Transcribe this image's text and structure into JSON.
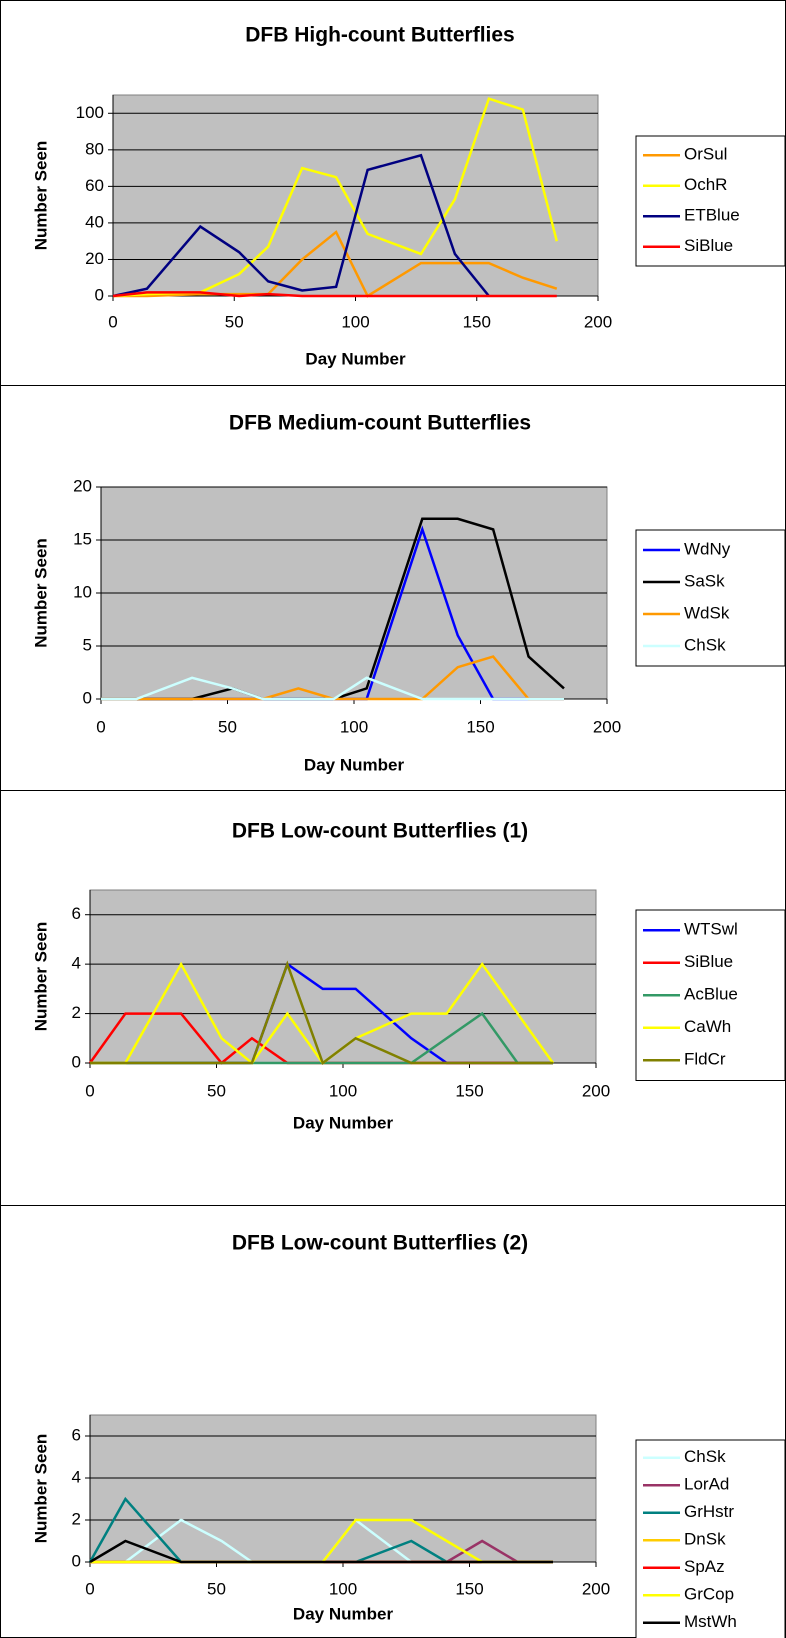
{
  "chart_data": [
    {
      "type": "line",
      "title": "DFB High-count Butterflies",
      "x_label": "Day Number",
      "y_label": "Number Seen",
      "x": [
        0,
        14,
        36,
        52,
        64,
        78,
        92,
        105,
        127,
        141,
        155,
        169,
        183
      ],
      "xlim": [
        0,
        200
      ],
      "xticks": [
        0,
        50,
        100,
        150,
        200
      ],
      "ylim": [
        0,
        110
      ],
      "yticks": [
        0,
        20,
        40,
        60,
        80,
        100
      ],
      "grid": true,
      "series": [
        {
          "name": "OrSul",
          "color": "#ff9900",
          "values": [
            0,
            0,
            1,
            1,
            1,
            20,
            35,
            0,
            18,
            18,
            18,
            10,
            4
          ]
        },
        {
          "name": "OchR",
          "color": "#ffff00",
          "values": [
            0,
            1,
            2,
            12,
            27,
            70,
            65,
            34,
            23,
            53,
            108,
            102,
            30
          ]
        },
        {
          "name": "ETBlue",
          "color": "#000080",
          "values": [
            0,
            4,
            38,
            24,
            8,
            3,
            5,
            69,
            77,
            23,
            0,
            null,
            null
          ]
        },
        {
          "name": "SiBlue",
          "color": "#ff0000",
          "values": [
            0,
            2,
            2,
            0,
            1,
            0,
            0,
            0,
            0,
            0,
            0,
            0,
            0
          ]
        }
      ]
    },
    {
      "type": "line",
      "title": "DFB Medium-count Butterflies",
      "x_label": "Day Number",
      "y_label": "Number Seen",
      "x": [
        0,
        14,
        36,
        52,
        64,
        78,
        92,
        105,
        127,
        141,
        155,
        169,
        183
      ],
      "xlim": [
        0,
        200
      ],
      "xticks": [
        0,
        50,
        100,
        150,
        200
      ],
      "ylim": [
        0,
        20
      ],
      "yticks": [
        0,
        5,
        10,
        15,
        20
      ],
      "grid": true,
      "series": [
        {
          "name": "WdNy",
          "color": "#0000ff",
          "values": [
            0,
            0,
            0,
            0,
            0,
            0,
            0,
            0,
            16,
            6,
            0,
            0,
            0
          ]
        },
        {
          "name": "SaSk",
          "color": "#000000",
          "values": [
            0,
            0,
            0,
            1,
            0,
            0,
            0,
            1,
            17,
            17,
            16,
            4,
            1
          ]
        },
        {
          "name": "WdSk",
          "color": "#ff9900",
          "values": [
            0,
            0,
            0,
            0,
            0,
            1,
            0,
            0,
            0,
            3,
            4,
            0,
            0
          ]
        },
        {
          "name": "ChSk",
          "color": "#ccffff",
          "values": [
            0,
            0,
            2,
            1,
            0,
            0,
            0,
            2,
            0,
            0,
            0,
            0,
            0
          ]
        }
      ]
    },
    {
      "type": "line",
      "title": "DFB Low-count Butterflies (1)",
      "x_label": "Day Number",
      "y_label": "Number Seen",
      "x": [
        0,
        14,
        36,
        52,
        64,
        78,
        92,
        105,
        127,
        141,
        155,
        169,
        183
      ],
      "xlim": [
        0,
        200
      ],
      "xticks": [
        0,
        50,
        100,
        150,
        200
      ],
      "ylim": [
        0,
        7
      ],
      "yticks": [
        0,
        2,
        4,
        6
      ],
      "grid": true,
      "series": [
        {
          "name": "WTSwl",
          "color": "#0000ff",
          "values": [
            0,
            0,
            0,
            0,
            0,
            4,
            3,
            3,
            1,
            0,
            0,
            0,
            0
          ]
        },
        {
          "name": "SiBlue",
          "color": "#ff0000",
          "values": [
            0,
            2,
            2,
            0,
            1,
            0,
            0,
            0,
            0,
            0,
            0,
            0,
            0
          ]
        },
        {
          "name": "AcBlue",
          "color": "#339966",
          "values": [
            0,
            0,
            0,
            0,
            0,
            0,
            0,
            0,
            0,
            1,
            2,
            0,
            0
          ]
        },
        {
          "name": "CaWh",
          "color": "#ffff00",
          "values": [
            0,
            0,
            4,
            1,
            0,
            2,
            0,
            1,
            2,
            2,
            4,
            2,
            0
          ]
        },
        {
          "name": "FldCr",
          "color": "#808000",
          "values": [
            0,
            0,
            0,
            0,
            0,
            4,
            0,
            1,
            0,
            0,
            0,
            0,
            0
          ]
        }
      ]
    },
    {
      "type": "line",
      "title": "DFB Low-count Butterflies (2)",
      "x_label": "Day Number",
      "y_label": "Number Seen",
      "x": [
        0,
        14,
        36,
        52,
        64,
        78,
        92,
        105,
        127,
        141,
        155,
        169,
        183
      ],
      "xlim": [
        0,
        200
      ],
      "xticks": [
        0,
        50,
        100,
        150,
        200
      ],
      "ylim": [
        0,
        7
      ],
      "yticks": [
        0,
        2,
        4,
        6
      ],
      "grid": true,
      "series": [
        {
          "name": "ChSk",
          "color": "#ccffff",
          "values": [
            0,
            0,
            2,
            1,
            0,
            0,
            0,
            2,
            0,
            0,
            0,
            0,
            0
          ]
        },
        {
          "name": "LorAd",
          "color": "#993366",
          "values": [
            0,
            0,
            0,
            0,
            0,
            0,
            0,
            0,
            0,
            0,
            1,
            0,
            0
          ]
        },
        {
          "name": "GrHstr",
          "color": "#008080",
          "values": [
            0,
            3,
            0,
            0,
            0,
            0,
            0,
            0,
            1,
            0,
            0,
            0,
            0
          ]
        },
        {
          "name": "DnSk",
          "color": "#ffcc00",
          "values": [
            0,
            0,
            0,
            0,
            0,
            0,
            0,
            0,
            0,
            0,
            0,
            0,
            0
          ]
        },
        {
          "name": "SpAz",
          "color": "#ff0000",
          "values": [
            0,
            0,
            0,
            0,
            0,
            0,
            0,
            0,
            0,
            0,
            0,
            0,
            0
          ]
        },
        {
          "name": "GrCop",
          "color": "#ffff00",
          "values": [
            0,
            0,
            0,
            0,
            0,
            0,
            0,
            2,
            2,
            1,
            0,
            0,
            0
          ]
        },
        {
          "name": "MstWh",
          "color": "#000000",
          "values": [
            0,
            1,
            0,
            0,
            0,
            0,
            0,
            0,
            0,
            0,
            0,
            0,
            0
          ]
        }
      ]
    }
  ]
}
